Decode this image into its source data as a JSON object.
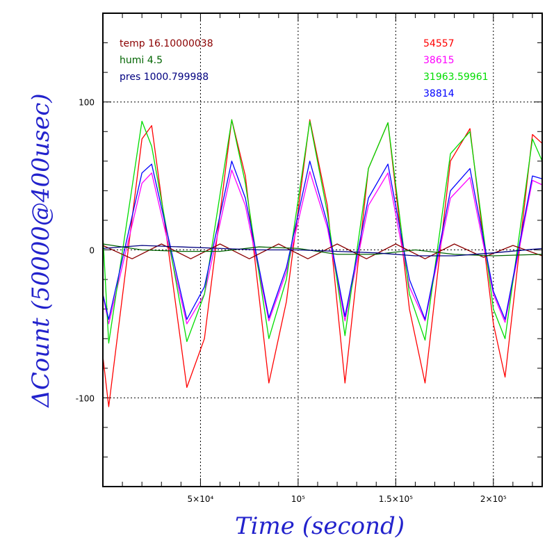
{
  "chart_data": {
    "type": "line",
    "xlabel": "Time (second)",
    "ylabel": "ΔCount (50000@400usec)",
    "xlim": [
      0,
      225000
    ],
    "ylim": [
      -160,
      160
    ],
    "grid": true,
    "x_ticks": [
      {
        "value": 50000,
        "label": "5×10⁴"
      },
      {
        "value": 100000,
        "label": "10⁵"
      },
      {
        "value": 150000,
        "label": "1.5×10⁵"
      },
      {
        "value": 200000,
        "label": "2×10⁵"
      }
    ],
    "y_ticks": [
      {
        "value": 100,
        "label": "100"
      },
      {
        "value": 0,
        "label": "0"
      },
      {
        "value": -100,
        "label": "-100"
      }
    ],
    "legend_left": [
      {
        "text": "temp 16.10000038",
        "color": "#8b0000"
      },
      {
        "text": "humi 4.5",
        "color": "#006400"
      },
      {
        "text": "pres 1000.799988",
        "color": "#000080"
      }
    ],
    "legend_right": [
      {
        "text": "54557",
        "color": "#ff0000"
      },
      {
        "text": "38615",
        "color": "#ff00ff"
      },
      {
        "text": "31963.59961",
        "color": "#00dd00"
      },
      {
        "text": "38814",
        "color": "#0000ff"
      }
    ],
    "series": [
      {
        "color": "#ff0000",
        "x": [
          0,
          3000,
          20000,
          25000,
          43000,
          52000,
          66000,
          73000,
          85000,
          94000,
          106000,
          115000,
          124000,
          136000,
          146000,
          157000,
          165000,
          178000,
          188000,
          200000,
          206000,
          220000,
          225000
        ],
        "values": [
          -72,
          -106,
          75,
          84,
          -93,
          -60,
          88,
          50,
          -90,
          -35,
          88,
          30,
          -90,
          55,
          86,
          -40,
          -90,
          60,
          82,
          -50,
          -86,
          78,
          72
        ]
      },
      {
        "color": "#ff00ff",
        "x": [
          0,
          3000,
          20000,
          25000,
          43000,
          52000,
          66000,
          73000,
          85000,
          94000,
          106000,
          115000,
          124000,
          136000,
          146000,
          157000,
          165000,
          178000,
          188000,
          200000,
          206000,
          220000,
          225000
        ],
        "values": [
          -30,
          -50,
          45,
          52,
          -50,
          -30,
          54,
          30,
          -48,
          -15,
          53,
          15,
          -48,
          30,
          52,
          -25,
          -48,
          35,
          49,
          -30,
          -49,
          47,
          44
        ]
      },
      {
        "color": "#00dd00",
        "x": [
          0,
          3000,
          20000,
          25000,
          43000,
          52000,
          66000,
          73000,
          85000,
          94000,
          106000,
          115000,
          124000,
          136000,
          146000,
          157000,
          165000,
          178000,
          188000,
          200000,
          206000,
          220000,
          225000
        ],
        "values": [
          10,
          -63,
          87,
          70,
          -62,
          -30,
          88,
          45,
          -60,
          -20,
          87,
          25,
          -58,
          55,
          86,
          -30,
          -61,
          65,
          80,
          -40,
          -60,
          75,
          60
        ]
      },
      {
        "color": "#0000ff",
        "x": [
          0,
          3000,
          20000,
          25000,
          43000,
          52000,
          66000,
          73000,
          85000,
          94000,
          106000,
          115000,
          124000,
          136000,
          146000,
          157000,
          165000,
          178000,
          188000,
          200000,
          206000,
          220000,
          225000
        ],
        "values": [
          -30,
          -47,
          52,
          58,
          -47,
          -25,
          60,
          35,
          -46,
          -12,
          60,
          18,
          -45,
          35,
          58,
          -20,
          -47,
          40,
          55,
          -28,
          -47,
          50,
          48
        ]
      },
      {
        "color": "#8b0000",
        "x": [
          0,
          15000,
          30000,
          45000,
          60000,
          75000,
          90000,
          105000,
          120000,
          135000,
          150000,
          165000,
          180000,
          195000,
          210000,
          225000
        ],
        "values": [
          3,
          -6,
          4,
          -6,
          4,
          -6,
          4,
          -6,
          4,
          -6,
          4,
          -6,
          4,
          -5,
          3,
          -4
        ]
      },
      {
        "color": "#006400",
        "x": [
          0,
          20000,
          40000,
          60000,
          80000,
          100000,
          120000,
          140000,
          160000,
          180000,
          200000,
          225000
        ],
        "values": [
          4,
          0,
          -1,
          -1,
          2,
          1,
          -3,
          -3,
          0,
          -3,
          -4,
          -3
        ]
      },
      {
        "color": "#000080",
        "x": [
          0,
          20000,
          40000,
          60000,
          80000,
          100000,
          120000,
          140000,
          160000,
          180000,
          200000,
          225000
        ],
        "values": [
          1,
          3,
          2,
          1,
          0,
          0,
          -1,
          -2,
          -4,
          -4,
          -2,
          1
        ]
      }
    ]
  }
}
